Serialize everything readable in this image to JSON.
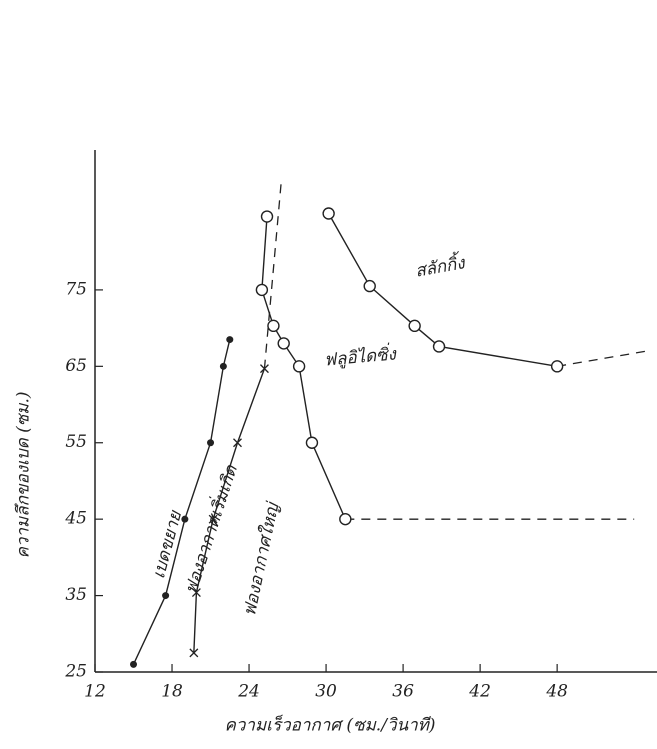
{
  "chart_data": {
    "type": "line",
    "x_label": "ความเร็วอากาศ (ซม./วินาที)",
    "y_label": "ความลึกของเบด (ซม.)",
    "xlim": [
      12,
      55
    ],
    "xticks": [
      12,
      18,
      24,
      30,
      36,
      42,
      48
    ],
    "ylim": [
      25,
      92
    ],
    "yticks": [
      25,
      35,
      45,
      55,
      65,
      75
    ],
    "grid": false,
    "annotation": "ฟองอากาศใหญ่",
    "series": [
      {
        "name": "เบดขยาย",
        "color": "#222222",
        "marker": "filled",
        "x": [
          15,
          17.5,
          19,
          21,
          22,
          22.5
        ],
        "values": [
          26,
          35,
          45,
          55,
          65,
          68.5
        ]
      },
      {
        "name": "ฟองอากาศเริ่มเกิด",
        "color": "#222222",
        "marker": "cross",
        "x": [
          19.7,
          19.9,
          21.2,
          23.1,
          25.2
        ],
        "values": [
          27.5,
          35.4,
          45,
          55,
          64.7
        ],
        "extension": {
          "x": [
            25.2,
            26.5
          ],
          "values": [
            64.7,
            89
          ]
        }
      },
      {
        "name": "ฟลูอิไดซิ่ง",
        "color": "#222222",
        "marker": "open",
        "x": [
          31.5,
          28.9,
          27.9,
          26.7,
          25.9,
          25,
          25.4
        ],
        "values": [
          45,
          55,
          65,
          68,
          70.3,
          75,
          84.6
        ],
        "extension": {
          "x": [
            31.5,
            54
          ],
          "values": [
            45,
            45
          ]
        }
      },
      {
        "name": "สลักกิ้ง",
        "color": "#222222",
        "marker": "open",
        "x": [
          30.2,
          33.4,
          36.9,
          38.8,
          48
        ],
        "values": [
          85,
          75.5,
          70.3,
          67.6,
          65
        ],
        "extension": {
          "x": [
            48,
            55
          ],
          "values": [
            65,
            67
          ]
        }
      }
    ]
  }
}
